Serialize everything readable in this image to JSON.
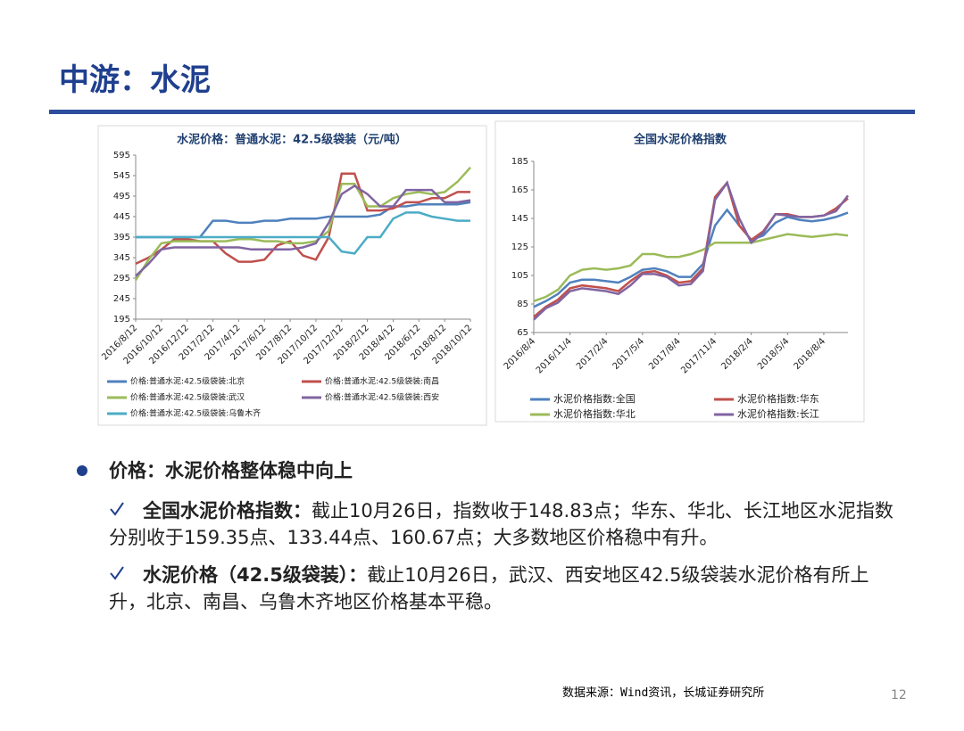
{
  "header": {
    "title": "中游：水泥"
  },
  "chart_data": [
    {
      "type": "line",
      "title": "水泥价格：普通水泥：42.5级袋装（元/吨）",
      "categories": [
        "2016/8/12",
        null,
        "2016/10/12",
        null,
        "2016/12/12",
        null,
        "2017/2/12",
        null,
        "2017/4/12",
        null,
        "2017/6/12",
        null,
        "2017/8/12",
        null,
        "2017/10/12",
        null,
        "2017/12/12",
        null,
        "2018/2/12",
        null,
        "2018/4/12",
        null,
        "2018/6/12",
        null,
        "2018/8/12",
        null,
        "2018/10/12"
      ],
      "ylim": [
        195,
        595
      ],
      "yticks": [
        195,
        245,
        295,
        345,
        395,
        445,
        495,
        545,
        595
      ],
      "series": [
        {
          "name": "价格:普通水泥:42.5级袋装:北京",
          "color": "#4f81bd",
          "values": [
            395,
            395,
            395,
            395,
            395,
            395,
            435,
            435,
            430,
            430,
            435,
            435,
            440,
            440,
            440,
            445,
            445,
            445,
            445,
            450,
            470,
            470,
            475,
            475,
            475,
            475,
            480
          ]
        },
        {
          "name": "价格:普通水泥:42.5级袋装:南昌",
          "color": "#c0504d",
          "values": [
            330,
            345,
            365,
            390,
            390,
            385,
            385,
            355,
            335,
            335,
            340,
            375,
            385,
            350,
            340,
            395,
            550,
            550,
            460,
            460,
            465,
            480,
            480,
            490,
            490,
            505,
            505
          ]
        },
        {
          "name": "价格:普通水泥:42.5级袋装:武汉",
          "color": "#9bbb59",
          "values": [
            290,
            340,
            380,
            385,
            385,
            385,
            385,
            385,
            390,
            390,
            385,
            385,
            380,
            380,
            385,
            410,
            525,
            525,
            470,
            470,
            490,
            500,
            505,
            500,
            505,
            530,
            565
          ]
        },
        {
          "name": "价格:普通水泥:42.5级袋装:西安",
          "color": "#8064a2",
          "values": [
            300,
            330,
            365,
            370,
            370,
            370,
            370,
            370,
            370,
            365,
            365,
            365,
            365,
            370,
            380,
            430,
            500,
            520,
            500,
            470,
            470,
            510,
            510,
            510,
            480,
            480,
            485
          ]
        },
        {
          "name": "价格:普通水泥:42.5级袋装:乌鲁木齐",
          "color": "#4bacc6",
          "values": [
            395,
            395,
            395,
            395,
            395,
            395,
            395,
            395,
            395,
            395,
            395,
            395,
            395,
            395,
            395,
            395,
            360,
            355,
            395,
            395,
            440,
            455,
            455,
            445,
            440,
            435,
            435
          ]
        }
      ]
    },
    {
      "type": "line",
      "title": "全国水泥价格指数",
      "categories": [
        "2016/8/4",
        null,
        null,
        "2016/11/4",
        null,
        null,
        "2017/2/4",
        null,
        null,
        "2017/5/4",
        null,
        null,
        "2017/8/4",
        null,
        null,
        "2017/11/4",
        null,
        null,
        "2018/2/4",
        null,
        null,
        "2018/5/4",
        null,
        null,
        "2018/8/4",
        null,
        null
      ],
      "ylim": [
        65,
        185
      ],
      "yticks": [
        65,
        85,
        105,
        125,
        145,
        165,
        185
      ],
      "series": [
        {
          "name": "水泥价格指数:全国",
          "color": "#4f81bd",
          "values": [
            83,
            87,
            92,
            100,
            102,
            102,
            101,
            100,
            104,
            109,
            110,
            108,
            104,
            104,
            113,
            140,
            151,
            140,
            130,
            133,
            142,
            146,
            144,
            143,
            144,
            146,
            149
          ]
        },
        {
          "name": "水泥价格指数:华东",
          "color": "#c0504d",
          "values": [
            76,
            83,
            88,
            96,
            98,
            97,
            96,
            94,
            101,
            107,
            108,
            105,
            100,
            101,
            110,
            160,
            170,
            140,
            130,
            136,
            148,
            148,
            146,
            146,
            147,
            152,
            159
          ]
        },
        {
          "name": "水泥价格指数:华北",
          "color": "#9bbb59",
          "values": [
            87,
            90,
            95,
            105,
            109,
            110,
            109,
            110,
            112,
            120,
            120,
            118,
            118,
            120,
            123,
            128,
            128,
            128,
            128,
            130,
            132,
            134,
            133,
            132,
            133,
            134,
            133
          ]
        },
        {
          "name": "水泥价格指数:长江",
          "color": "#8064a2",
          "values": [
            74,
            82,
            86,
            94,
            96,
            95,
            94,
            92,
            98,
            106,
            106,
            104,
            98,
            99,
            108,
            158,
            170,
            145,
            128,
            135,
            148,
            147,
            146,
            146,
            147,
            150,
            161
          ]
        }
      ]
    }
  ],
  "bullets": {
    "main": "价格：水泥价格整体稳中向上",
    "items": [
      {
        "bold": "全国水泥价格指数：",
        "text": "截止10月26日，指数收于148.83点；华东、华北、长江地区水泥指数分别收于159.35点、133.44点、160.67点；大多数地区价格稳中有升。"
      },
      {
        "bold": "水泥价格（42.5级袋装）：",
        "text": "截止10月26日，武汉、西安地区42.5级袋装水泥价格有所上升，北京、南昌、乌鲁木齐地区价格基本平稳。"
      }
    ]
  },
  "footer": {
    "source": "数据来源：Wind资讯，长城证券研究所",
    "page": "12"
  }
}
